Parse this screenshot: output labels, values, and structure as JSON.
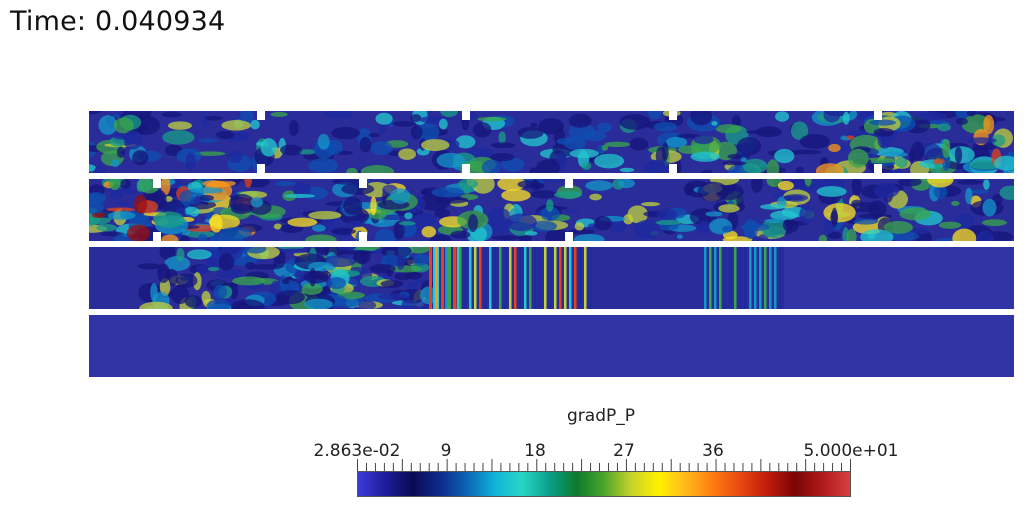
{
  "time_label": "Time: 0.040934",
  "colorbar": {
    "title": "gradP_P",
    "min_label": "2.863e-02",
    "max_label": "5.000e+01",
    "ticks": [
      "9",
      "18",
      "27",
      "36"
    ],
    "range": [
      0.02863,
      50
    ],
    "colors": [
      "#3b3bd9",
      "#1d1d9a",
      "#0a0a55",
      "#0d2a8a",
      "#0a66b8",
      "#10b3d8",
      "#27d6c6",
      "#0aa08a",
      "#0c7a2a",
      "#4aa52a",
      "#c8d22a",
      "#fff200",
      "#ffb81c",
      "#ff7a10",
      "#e84810",
      "#c01a08",
      "#7a0505",
      "#b01a1a",
      "#d84040"
    ]
  }
}
